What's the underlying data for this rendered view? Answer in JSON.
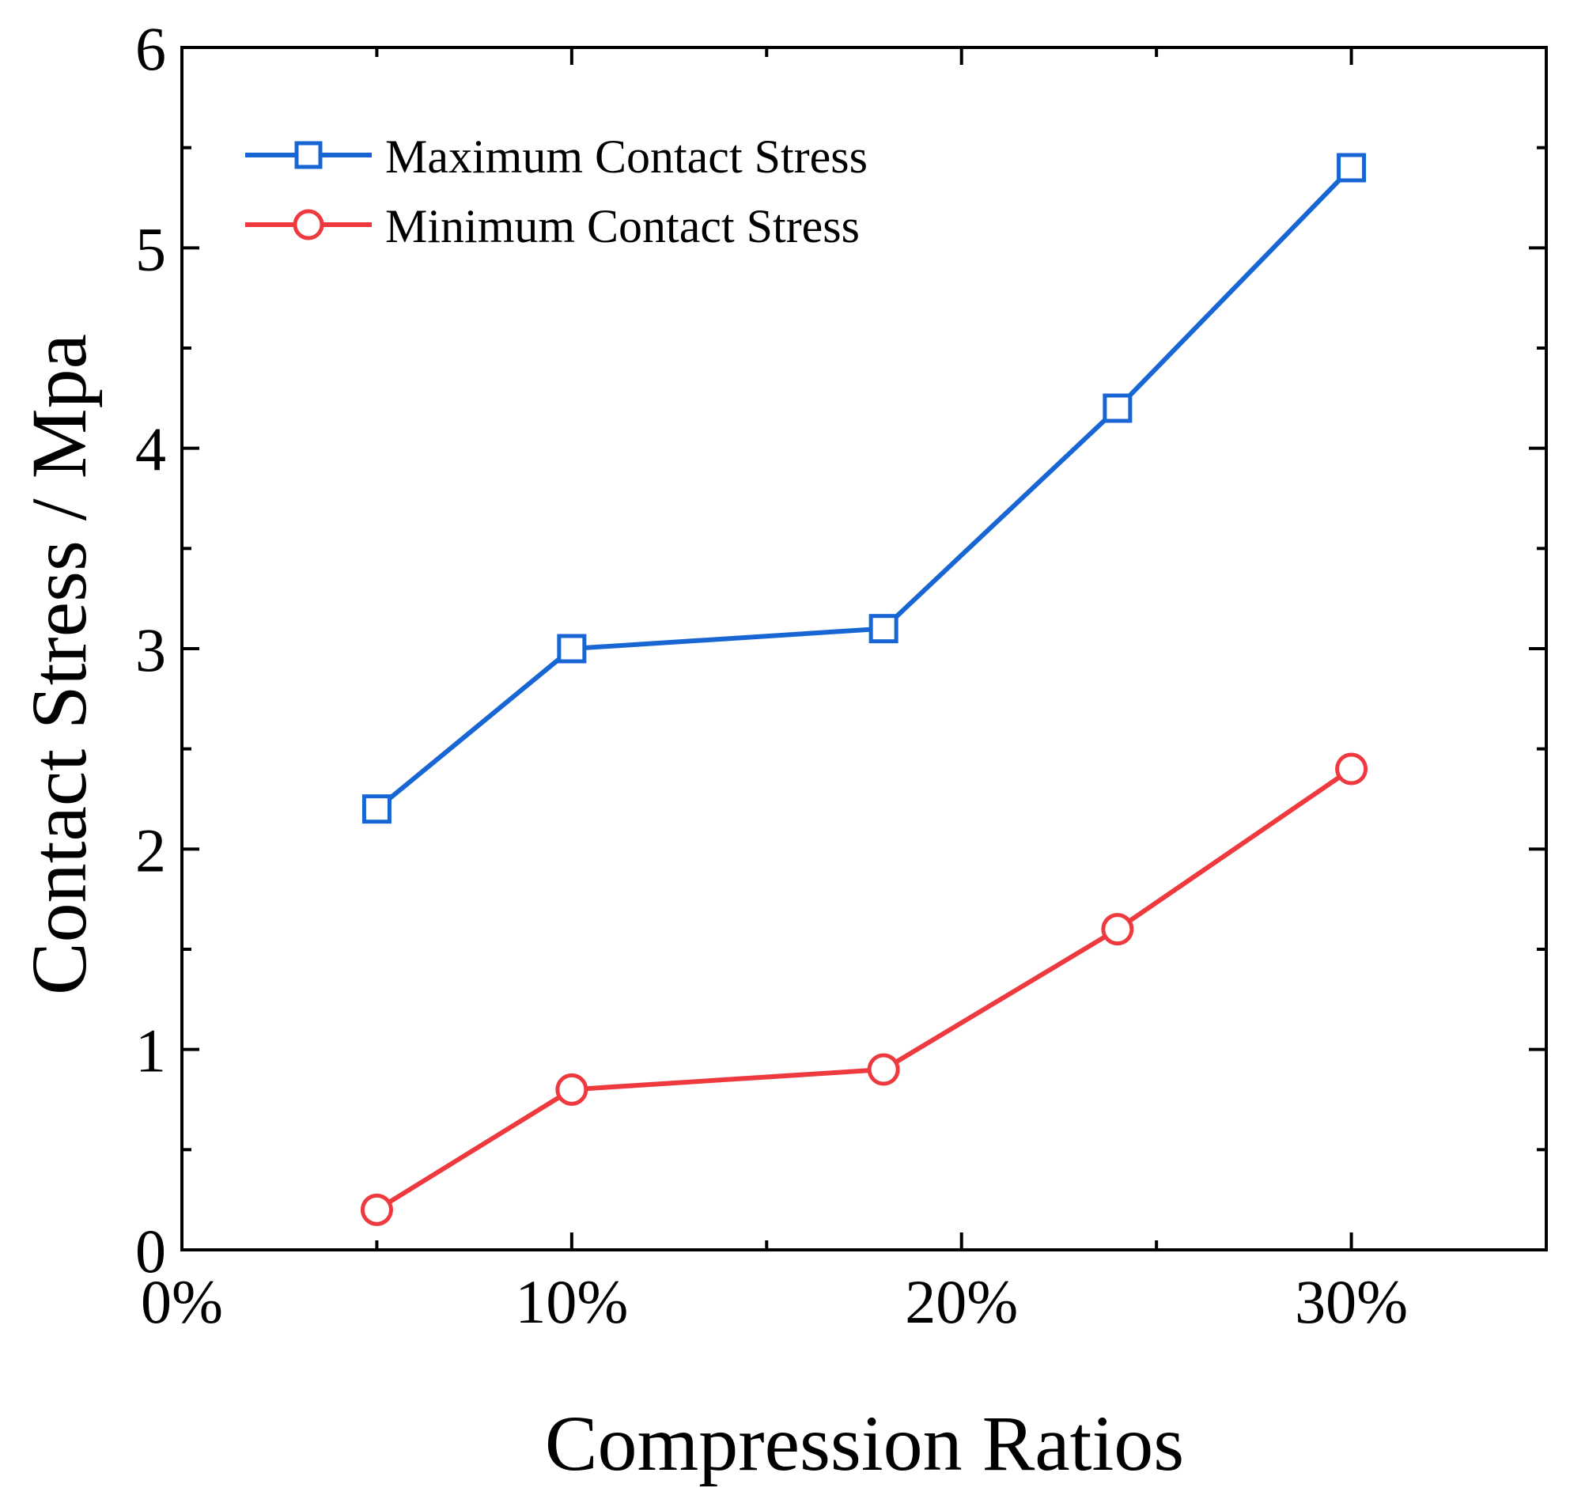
{
  "chart_data": {
    "type": "line",
    "xlabel": "Compression Ratios",
    "ylabel": "Contact Stress / Mpa",
    "xlim": [
      0,
      35
    ],
    "ylim": [
      0,
      6
    ],
    "x_ticks": [
      {
        "value": 0,
        "label": "0%"
      },
      {
        "value": 10,
        "label": "10%"
      },
      {
        "value": 20,
        "label": "20%"
      },
      {
        "value": 30,
        "label": "30%"
      }
    ],
    "x_minor_ticks": [
      5,
      15,
      25
    ],
    "y_ticks": [
      {
        "value": 0,
        "label": "0"
      },
      {
        "value": 1,
        "label": "1"
      },
      {
        "value": 2,
        "label": "2"
      },
      {
        "value": 3,
        "label": "3"
      },
      {
        "value": 4,
        "label": "4"
      },
      {
        "value": 5,
        "label": "5"
      },
      {
        "value": 6,
        "label": "6"
      }
    ],
    "y_minor_ticks": [
      0.5,
      1.5,
      2.5,
      3.5,
      4.5,
      5.5
    ],
    "grid": false,
    "legend": "top-left",
    "x": [
      5,
      10,
      18,
      24,
      30
    ],
    "series": [
      {
        "name": "Maximum Contact Stress",
        "values": [
          2.2,
          3.0,
          3.1,
          4.2,
          5.4
        ],
        "color": "#1766d4",
        "marker": "square-open"
      },
      {
        "name": "Minimum Contact Stress",
        "values": [
          0.2,
          0.8,
          0.9,
          1.6,
          2.4
        ],
        "color": "#ee3a3f",
        "marker": "circle-open"
      }
    ]
  }
}
